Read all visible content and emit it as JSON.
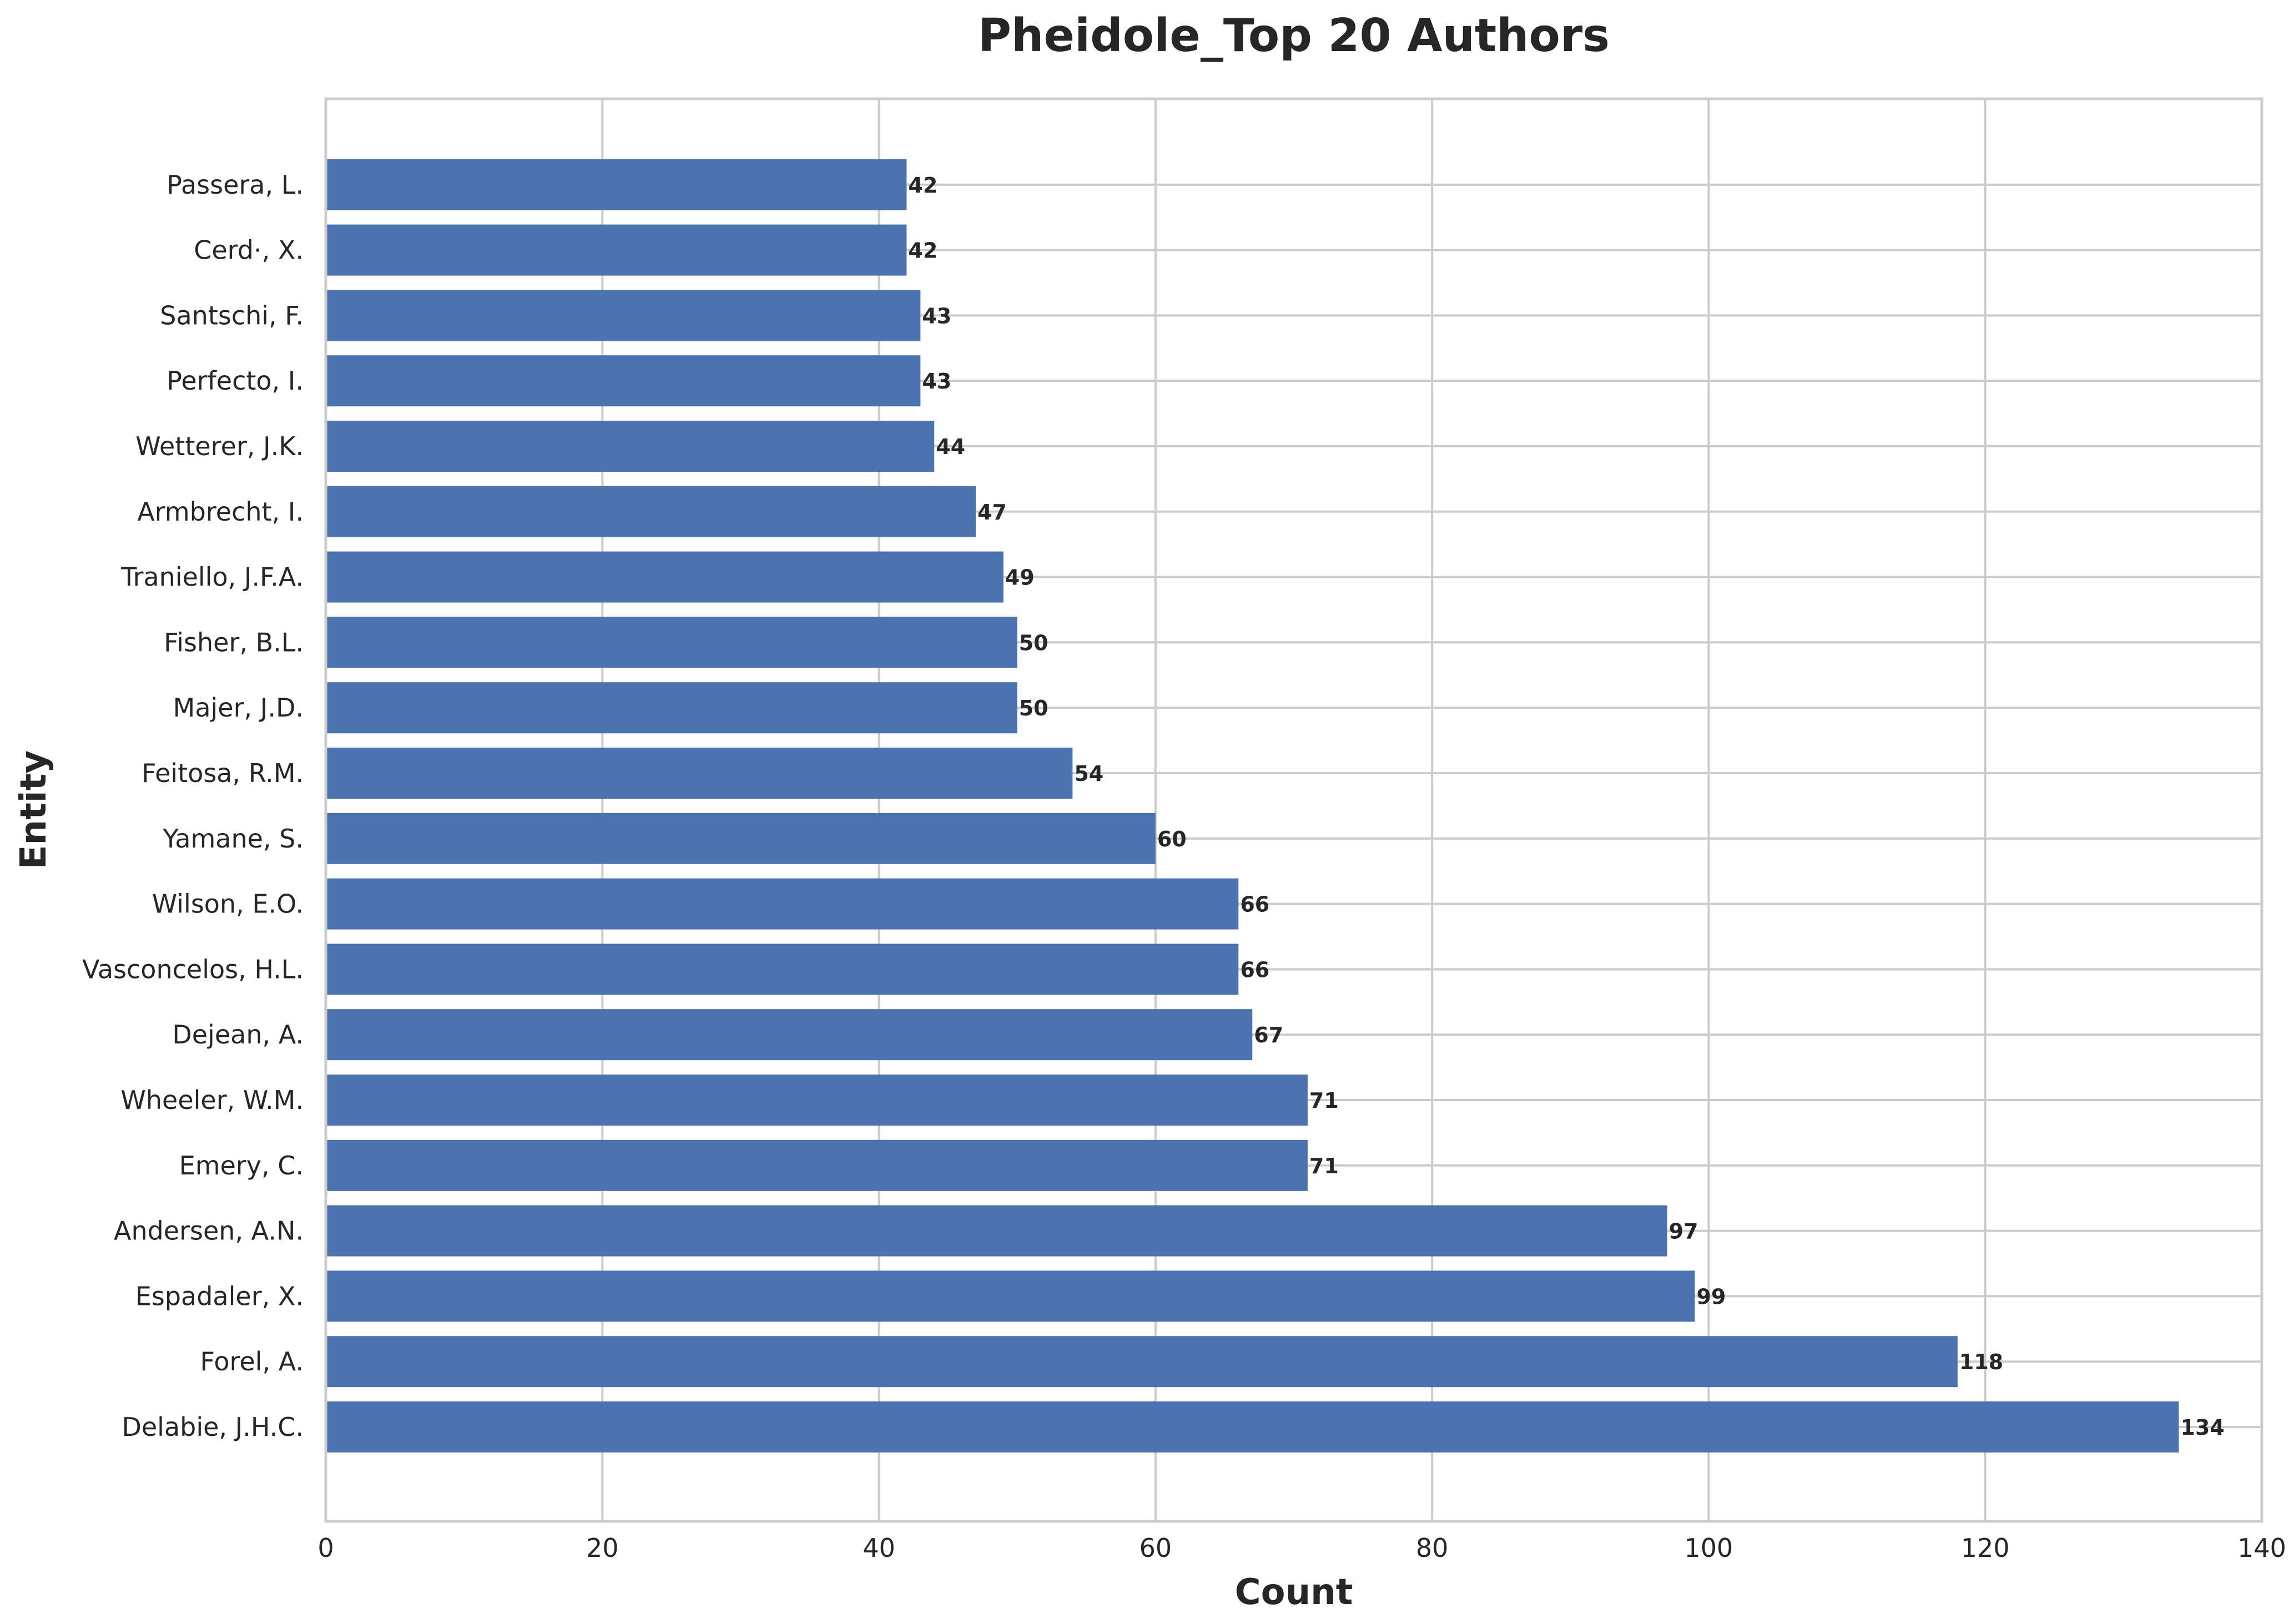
{
  "chart_data": {
    "type": "bar",
    "orientation": "horizontal",
    "title": "Pheidole_Top 20 Authors",
    "xlabel": "Count",
    "ylabel": "Entity",
    "xlim": [
      0,
      140
    ],
    "xticks": [
      0,
      20,
      40,
      60,
      80,
      100,
      120,
      140
    ],
    "grid": true,
    "bar_color": "#4c72b0",
    "categories": [
      "Delabie, J.H.C.",
      "Forel, A.",
      "Espadaler, X.",
      "Andersen, A.N.",
      "Emery, C.",
      "Wheeler, W.M.",
      "Dejean, A.",
      "Vasconcelos, H.L.",
      "Wilson, E.O.",
      "Yamane, S.",
      "Feitosa, R.M.",
      "Majer, J.D.",
      "Fisher, B.L.",
      "Traniello, J.F.A.",
      "Armbrecht, I.",
      "Wetterer, J.K.",
      "Perfecto, I.",
      "Santschi, F.",
      "Cerd·, X.",
      "Passera, L."
    ],
    "values": [
      134,
      118,
      99,
      97,
      71,
      71,
      67,
      66,
      66,
      60,
      54,
      50,
      50,
      49,
      47,
      44,
      43,
      43,
      42,
      42
    ]
  }
}
